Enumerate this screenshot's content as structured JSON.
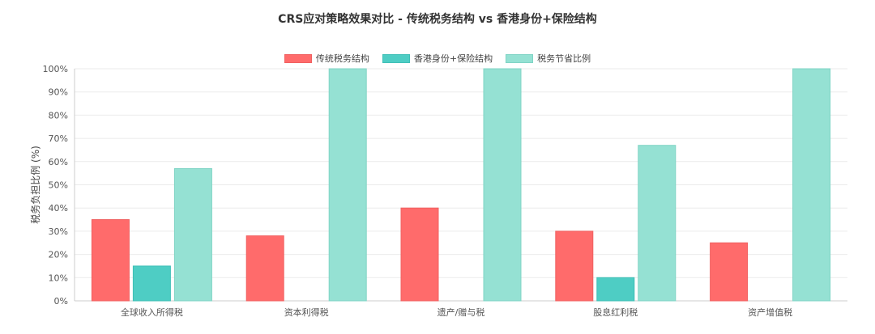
{
  "chart_data": {
    "type": "bar",
    "title": "CRS应对策略效果对比 - 传统税务结构 vs 香港身份+保险结构",
    "xlabel": "",
    "ylabel": "税务负担比例 (%)",
    "ylim": [
      0,
      100
    ],
    "yticks": [
      0,
      10,
      20,
      30,
      40,
      50,
      60,
      70,
      80,
      90,
      100
    ],
    "ytick_suffix": "%",
    "grid": true,
    "legend_position": "top-center",
    "categories": [
      "全球收入所得税",
      "资本利得税",
      "遗产/赠与税",
      "股息红利税",
      "资产增值税"
    ],
    "series": [
      {
        "name": "传统税务结构",
        "values": [
          35,
          28,
          40,
          30,
          25
        ],
        "color": "#ff6b6b",
        "border": "#f06060"
      },
      {
        "name": "香港身份+保险结构",
        "values": [
          15,
          0,
          0,
          10,
          0
        ],
        "color": "#4ecdc4",
        "border": "#3fbfb6"
      },
      {
        "name": "税务节省比例",
        "values": [
          57,
          100,
          100,
          67,
          100
        ],
        "color": "#95e1d3",
        "border": "#80d4c5"
      }
    ]
  }
}
